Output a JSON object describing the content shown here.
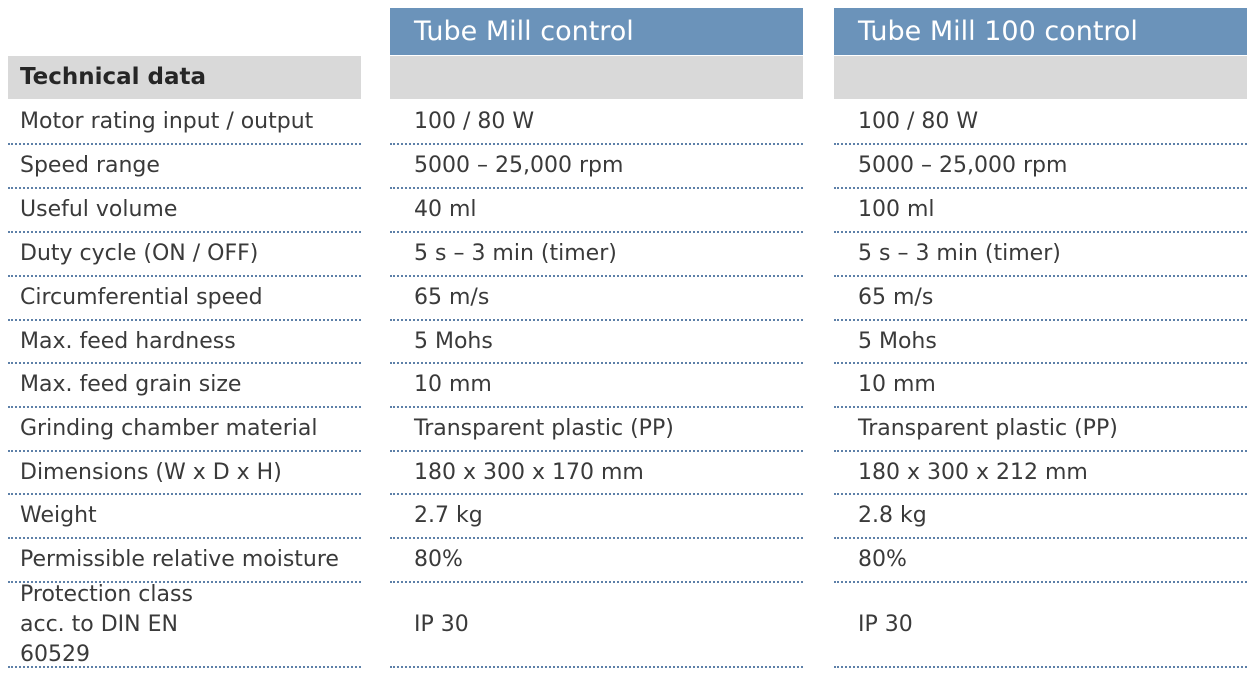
{
  "table": {
    "section_title": "Technical data",
    "columns": [
      "Tube Mill control",
      "Tube Mill 100 control"
    ],
    "rows": [
      {
        "label": "Motor rating input / output",
        "values": [
          "100 / 80 W",
          "100 / 80 W"
        ]
      },
      {
        "label": "Speed range",
        "values": [
          "5000 – 25,000 rpm",
          "5000 – 25,000 rpm"
        ]
      },
      {
        "label": "Useful volume",
        "values": [
          "40 ml",
          "100 ml"
        ]
      },
      {
        "label": "Duty cycle (ON / OFF)",
        "values": [
          "5 s – 3 min (timer)",
          "5 s – 3 min (timer)"
        ]
      },
      {
        "label": "Circumferential speed",
        "values": [
          "65 m/s",
          "65 m/s"
        ]
      },
      {
        "label": "Max. feed hardness",
        "values": [
          "5 Mohs",
          "5 Mohs"
        ]
      },
      {
        "label": "Max. feed grain size",
        "values": [
          "10 mm",
          "10 mm"
        ]
      },
      {
        "label": "Grinding chamber material",
        "values": [
          "Transparent plastic (PP)",
          "Transparent plastic (PP)"
        ]
      },
      {
        "label": "Dimensions (W x D x H)",
        "values": [
          "180 x 300 x 170 mm",
          "180 x 300 x 212 mm"
        ]
      },
      {
        "label": "Weight",
        "values": [
          "2.7 kg",
          "2.8 kg"
        ]
      },
      {
        "label": "Permissible relative moisture",
        "values": [
          "80%",
          "80%"
        ]
      },
      {
        "label": "Protection class acc. to DIN EN 60529",
        "values": [
          "IP 30",
          "IP 30"
        ]
      }
    ]
  }
}
